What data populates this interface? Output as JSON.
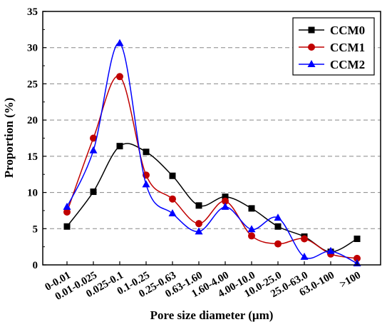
{
  "chart_data": {
    "type": "line",
    "xlabel": "Pore size diameter (μm)",
    "ylabel": "Proportion (%)",
    "ylim": [
      0,
      35
    ],
    "yticks": [
      0,
      5,
      10,
      15,
      20,
      25,
      30,
      35
    ],
    "grid": "horizontal dashed",
    "legend_position": "top-right",
    "smooth": true,
    "categories": [
      "0-0.01",
      "0.01-0.025",
      "0.025-0.1",
      "0.1-0.25",
      "0.25-0.63",
      "0.63-1.60",
      "1.60-4.00",
      "4.00-10.0",
      "10.0-25.0",
      "25.0-63.0",
      "63.0-100",
      ">100"
    ],
    "series": [
      {
        "name": "CCM0",
        "color": "#000000",
        "marker": "square",
        "values": [
          5.3,
          10.1,
          16.4,
          15.6,
          12.3,
          8.2,
          9.4,
          7.8,
          5.3,
          3.9,
          1.8,
          3.6
        ]
      },
      {
        "name": "CCM1",
        "color": "#c00000",
        "marker": "circle",
        "values": [
          7.3,
          17.5,
          26.0,
          12.4,
          9.1,
          5.7,
          8.8,
          4.0,
          2.9,
          3.6,
          1.5,
          0.9
        ]
      },
      {
        "name": "CCM2",
        "color": "#0000ff",
        "marker": "triangle",
        "values": [
          8.0,
          15.8,
          30.6,
          11.1,
          7.1,
          4.6,
          8.0,
          4.9,
          6.5,
          1.1,
          1.9,
          0.2
        ]
      }
    ]
  }
}
